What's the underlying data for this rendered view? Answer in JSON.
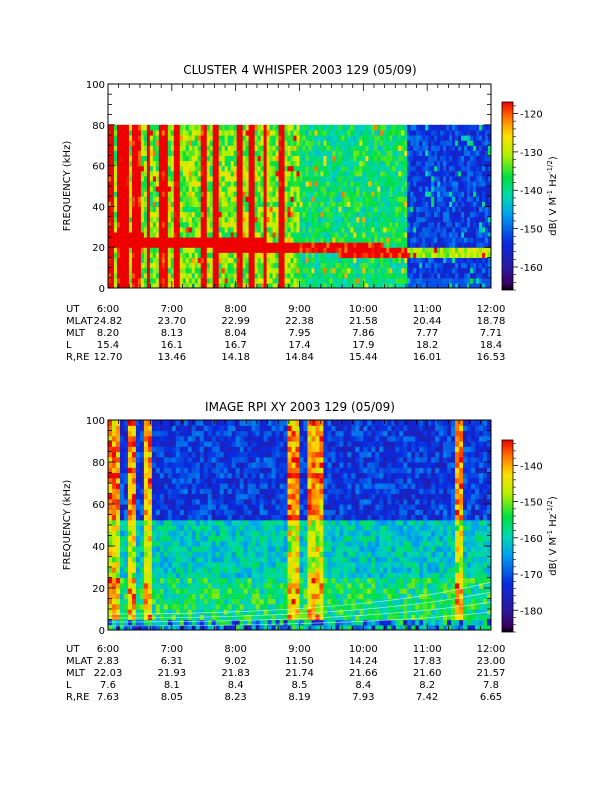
{
  "chart_data": [
    {
      "type": "heatmap",
      "title": "CLUSTER 4 WHISPER 2003 129 (05/09)",
      "ylabel": "FREQUENCY (kHz)",
      "ylim": [
        0,
        100
      ],
      "y_ticks": [
        "0",
        "20",
        "40",
        "60",
        "80",
        "100"
      ],
      "data_max_freq": 80,
      "colorbar": {
        "label": "dB( V M",
        "label_sup": "-1",
        "label_mid": " Hz",
        "label_sup2": "-1/2",
        "label_end": ")",
        "range": [
          -166,
          -117
        ],
        "ticks": [
          "-120",
          "-130",
          "-140",
          "-150",
          "-160"
        ]
      },
      "ephemeris": {
        "row_labels": [
          "UT",
          "MLAT",
          "MLT",
          "L",
          "R,RE"
        ],
        "ut": [
          "6:00",
          "7:00",
          "8:00",
          "9:00",
          "10:00",
          "11:00",
          "12:00"
        ],
        "mlat": [
          "24.82",
          "23.70",
          "22.99",
          "22.38",
          "21.58",
          "20.44",
          "18.78"
        ],
        "mlt": [
          "8.20",
          "8.13",
          "8.04",
          "7.95",
          "7.86",
          "7.77",
          "7.71"
        ],
        "l": [
          "15.4",
          "16.1",
          "16.7",
          "17.4",
          "17.9",
          "18.2",
          "18.4"
        ],
        "rre": [
          "12.70",
          "13.46",
          "14.18",
          "14.84",
          "15.44",
          "16.01",
          "16.53"
        ]
      }
    },
    {
      "type": "heatmap",
      "title": "IMAGE RPI XY 2003 129 (05/09)",
      "ylabel": "FREQUENCY (kHz)",
      "ylim": [
        0,
        100
      ],
      "y_ticks": [
        "0",
        "20",
        "40",
        "60",
        "80",
        "100"
      ],
      "data_max_freq": 100,
      "colorbar": {
        "label": "dB( V M",
        "label_sup": "-1",
        "label_mid": " Hz",
        "label_sup2": "-1/2",
        "label_end": ")",
        "range": [
          -186,
          -133
        ],
        "ticks": [
          "-140",
          "-150",
          "-160",
          "-170",
          "-180"
        ]
      },
      "ephemeris": {
        "row_labels": [
          "UT",
          "MLAT",
          "MLT",
          "L",
          "R,RE"
        ],
        "ut": [
          "6:00",
          "7:00",
          "8:00",
          "9:00",
          "10:00",
          "11:00",
          "12:00"
        ],
        "mlat": [
          "2.83",
          "6.31",
          "9.02",
          "11.50",
          "14.24",
          "17.83",
          "23.00"
        ],
        "mlt": [
          "22.03",
          "21.93",
          "21.83",
          "21.74",
          "21.66",
          "21.60",
          "21.57"
        ],
        "l": [
          "7.6",
          "8.1",
          "8.4",
          "8.5",
          "8.4",
          "8.2",
          "7.8"
        ],
        "rre": [
          "7.63",
          "8.05",
          "8.23",
          "8.19",
          "7.93",
          "7.42",
          "6.65"
        ]
      }
    }
  ]
}
